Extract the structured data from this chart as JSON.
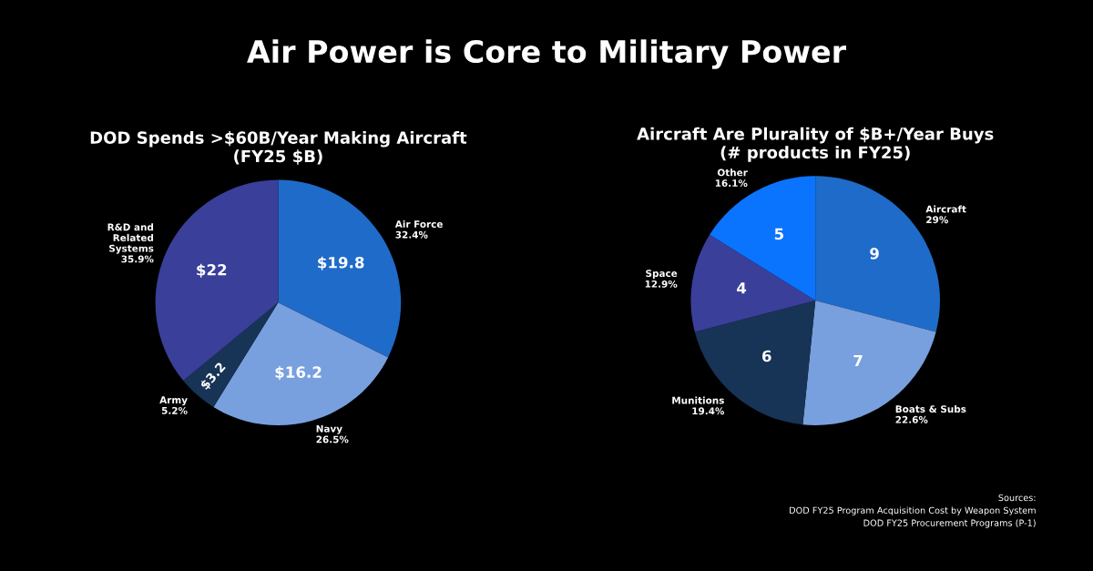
{
  "chart_data": [
    {
      "type": "pie",
      "title": "DOD Spends >$60B/Year Making Aircraft\n(FY25 $B)",
      "categories": [
        "Air Force\n32.4%",
        "Navy\n26.5%",
        "Army\n5.2%",
        "R&D and\nRelated\nSystems\n35.9%"
      ],
      "values": [
        19.8,
        16.2,
        3.2,
        22
      ],
      "value_labels": [
        "$19.8",
        "$16.2",
        "$3.2",
        "$22"
      ],
      "colors": [
        "#1f6bc9",
        "#78a0de",
        "#173456",
        "#3a3f9a"
      ],
      "annotations": [
        "Air Power is Core to Military Power"
      ]
    },
    {
      "type": "pie",
      "title": "Aircraft Are Plurality of $B+/Year Buys\n(# products in FY25)",
      "categories": [
        "Aircraft\n29%",
        "Boats & Subs\n22.6%",
        "Munitions\n19.4%",
        "Space\n12.9%",
        "Other\n16.1%"
      ],
      "values": [
        9,
        7,
        6,
        4,
        5
      ],
      "data_labels": true,
      "colors": [
        "#1f6bc9",
        "#78a0de",
        "#173456",
        "#3a3f9a",
        "#0a74ff"
      ],
      "annotations": [
        "Sources:\nDOD FY25 Program Acquisition Cost by Weapon System\nDOD FY25 Procurement Programs (P-1)"
      ]
    }
  ]
}
